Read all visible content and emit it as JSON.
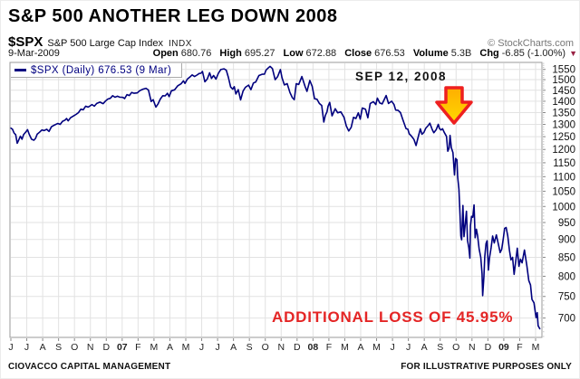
{
  "header": {
    "title": "S&P 500 ANOTHER LEG DOWN 2008",
    "symbol": "$SPX",
    "symbol_desc": "S&P 500 Large Cap Index",
    "exchange": "INDX",
    "copyright": "© StockCharts.com",
    "date": "9-Mar-2009",
    "quote": [
      {
        "label": "Open",
        "value": "680.76"
      },
      {
        "label": "High",
        "value": "695.27"
      },
      {
        "label": "Low",
        "value": "672.88"
      },
      {
        "label": "Close",
        "value": "676.53"
      },
      {
        "label": "Volume",
        "value": "5.3B"
      },
      {
        "label": "Chg",
        "value": "-6.85 (-1.00%)"
      }
    ],
    "chg_down_glyph": "▼"
  },
  "legend": "$SPX (Daily) 676.53 (9 Mar)",
  "annotations": {
    "event_label": "SEP 12, 2008",
    "loss_label": "ADDITIONAL LOSS OF 45.95%"
  },
  "footer": {
    "left": "CIOVACCO CAPITAL MANAGEMENT",
    "right": "FOR ILLUSTRATIVE PURPOSES ONLY"
  },
  "colors": {
    "line": "#00007E",
    "grid": "#E2E2E2",
    "frame": "#9A9A9A",
    "tick": "#888888",
    "minor_tick": "#C8C8C8",
    "axis_text": "#111111",
    "arrow_fill_top": "#FFAE00",
    "arrow_fill_bottom": "#FFD800",
    "arrow_stroke": "#EE2020",
    "loss_text": "#E42525",
    "chg_triangle": "#992244"
  },
  "chart_data": {
    "type": "line",
    "scale": "log",
    "title": "S&P 500 ANOTHER LEG DOWN 2008",
    "xlabel": "",
    "ylabel": "",
    "x_unit": "months since Jun-2006 (fractional); axis ticks are month starts",
    "x_months": [
      "J",
      "J",
      "A",
      "S",
      "O",
      "N",
      "D",
      "07",
      "F",
      "M",
      "A",
      "M",
      "J",
      "J",
      "A",
      "S",
      "O",
      "N",
      "D",
      "08",
      "F",
      "M",
      "A",
      "M",
      "J",
      "J",
      "A",
      "S",
      "O",
      "N",
      "D",
      "09",
      "F",
      "M"
    ],
    "y_ticks": [
      1550,
      1500,
      1450,
      1400,
      1350,
      1300,
      1250,
      1200,
      1150,
      1100,
      1050,
      1000,
      950,
      900,
      850,
      800,
      750,
      700
    ],
    "ylim": [
      658,
      1585
    ],
    "grid": true,
    "legend_position": "top-left",
    "series": [
      {
        "name": "$SPX (Daily)",
        "last_value": 676.53,
        "last_date": "9-Mar-2009",
        "points": [
          [
            0,
            1285
          ],
          [
            0.1,
            1280
          ],
          [
            0.2,
            1265
          ],
          [
            0.3,
            1258
          ],
          [
            0.4,
            1224
          ],
          [
            0.5,
            1238
          ],
          [
            0.6,
            1252
          ],
          [
            0.7,
            1240
          ],
          [
            0.8,
            1258
          ],
          [
            0.95,
            1270
          ],
          [
            1.05,
            1278
          ],
          [
            1.15,
            1260
          ],
          [
            1.3,
            1240
          ],
          [
            1.45,
            1236
          ],
          [
            1.55,
            1243
          ],
          [
            1.65,
            1260
          ],
          [
            1.8,
            1268
          ],
          [
            1.95,
            1277
          ],
          [
            2.1,
            1275
          ],
          [
            2.25,
            1280
          ],
          [
            2.4,
            1271
          ],
          [
            2.55,
            1290
          ],
          [
            2.7,
            1296
          ],
          [
            2.85,
            1301
          ],
          [
            2.95,
            1304
          ],
          [
            3.1,
            1300
          ],
          [
            3.25,
            1313
          ],
          [
            3.4,
            1318
          ],
          [
            3.5,
            1325
          ],
          [
            3.6,
            1315
          ],
          [
            3.75,
            1328
          ],
          [
            3.95,
            1336
          ],
          [
            4.1,
            1342
          ],
          [
            4.25,
            1350
          ],
          [
            4.4,
            1365
          ],
          [
            4.55,
            1362
          ],
          [
            4.7,
            1378
          ],
          [
            4.85,
            1374
          ],
          [
            4.95,
            1378
          ],
          [
            5.1,
            1385
          ],
          [
            5.25,
            1378
          ],
          [
            5.4,
            1390
          ],
          [
            5.6,
            1396
          ],
          [
            5.8,
            1389
          ],
          [
            5.95,
            1401
          ],
          [
            6.1,
            1410
          ],
          [
            6.25,
            1413
          ],
          [
            6.4,
            1425
          ],
          [
            6.55,
            1418
          ],
          [
            6.7,
            1423
          ],
          [
            6.85,
            1418
          ],
          [
            6.95,
            1418
          ],
          [
            7.05,
            1417
          ],
          [
            7.15,
            1412
          ],
          [
            7.3,
            1430
          ],
          [
            7.45,
            1426
          ],
          [
            7.6,
            1440
          ],
          [
            7.75,
            1436
          ],
          [
            7.95,
            1438
          ],
          [
            8.1,
            1448
          ],
          [
            8.3,
            1455
          ],
          [
            8.5,
            1459
          ],
          [
            8.65,
            1451
          ],
          [
            8.82,
            1399
          ],
          [
            8.95,
            1407
          ],
          [
            9.05,
            1387
          ],
          [
            9.12,
            1374
          ],
          [
            9.25,
            1387
          ],
          [
            9.4,
            1410
          ],
          [
            9.55,
            1425
          ],
          [
            9.7,
            1424
          ],
          [
            9.85,
            1436
          ],
          [
            9.95,
            1421
          ],
          [
            10.1,
            1448
          ],
          [
            10.3,
            1452
          ],
          [
            10.5,
            1471
          ],
          [
            10.7,
            1480
          ],
          [
            10.85,
            1494
          ],
          [
            10.95,
            1482
          ],
          [
            11.1,
            1503
          ],
          [
            11.25,
            1512
          ],
          [
            11.4,
            1523
          ],
          [
            11.55,
            1515
          ],
          [
            11.7,
            1522
          ],
          [
            11.85,
            1530
          ],
          [
            11.95,
            1531
          ],
          [
            12.05,
            1540
          ],
          [
            12.2,
            1490
          ],
          [
            12.35,
            1503
          ],
          [
            12.5,
            1533
          ],
          [
            12.62,
            1506
          ],
          [
            12.75,
            1520
          ],
          [
            12.9,
            1503
          ],
          [
            13.05,
            1531
          ],
          [
            13.2,
            1549
          ],
          [
            13.4,
            1553
          ],
          [
            13.55,
            1546
          ],
          [
            13.68,
            1511
          ],
          [
            13.82,
            1465
          ],
          [
            13.95,
            1455
          ],
          [
            14.05,
            1467
          ],
          [
            14.15,
            1433
          ],
          [
            14.3,
            1453
          ],
          [
            14.45,
            1406
          ],
          [
            14.6,
            1446
          ],
          [
            14.75,
            1464
          ],
          [
            14.95,
            1474
          ],
          [
            15.1,
            1453
          ],
          [
            15.25,
            1484
          ],
          [
            15.4,
            1489
          ],
          [
            15.6,
            1520
          ],
          [
            15.8,
            1526
          ],
          [
            15.95,
            1527
          ],
          [
            16.05,
            1547
          ],
          [
            16.18,
            1557
          ],
          [
            16.3,
            1565
          ],
          [
            16.45,
            1554
          ],
          [
            16.62,
            1500
          ],
          [
            16.78,
            1515
          ],
          [
            16.95,
            1549
          ],
          [
            17.05,
            1509
          ],
          [
            17.2,
            1475
          ],
          [
            17.38,
            1481
          ],
          [
            17.55,
            1440
          ],
          [
            17.7,
            1416
          ],
          [
            17.82,
            1407
          ],
          [
            17.95,
            1481
          ],
          [
            18.1,
            1477
          ],
          [
            18.3,
            1515
          ],
          [
            18.5,
            1468
          ],
          [
            18.62,
            1445
          ],
          [
            18.8,
            1496
          ],
          [
            18.95,
            1468
          ],
          [
            19.1,
            1411
          ],
          [
            19.25,
            1409
          ],
          [
            19.4,
            1390
          ],
          [
            19.55,
            1381
          ],
          [
            19.68,
            1310
          ],
          [
            19.78,
            1338
          ],
          [
            19.88,
            1353
          ],
          [
            19.95,
            1378
          ],
          [
            20.05,
            1395
          ],
          [
            20.2,
            1336
          ],
          [
            20.4,
            1367
          ],
          [
            20.55,
            1349
          ],
          [
            20.75,
            1353
          ],
          [
            20.95,
            1330
          ],
          [
            21.1,
            1293
          ],
          [
            21.25,
            1273
          ],
          [
            21.4,
            1288
          ],
          [
            21.55,
            1330
          ],
          [
            21.7,
            1325
          ],
          [
            21.85,
            1349
          ],
          [
            21.97,
            1322
          ],
          [
            22.1,
            1370
          ],
          [
            22.3,
            1365
          ],
          [
            22.45,
            1328
          ],
          [
            22.6,
            1390
          ],
          [
            22.8,
            1398
          ],
          [
            22.95,
            1385
          ],
          [
            23.05,
            1414
          ],
          [
            23.2,
            1392
          ],
          [
            23.35,
            1388
          ],
          [
            23.6,
            1426
          ],
          [
            23.75,
            1390
          ],
          [
            23.95,
            1400
          ],
          [
            24.1,
            1385
          ],
          [
            24.2,
            1361
          ],
          [
            24.35,
            1360
          ],
          [
            24.5,
            1350
          ],
          [
            24.65,
            1320
          ],
          [
            24.85,
            1283
          ],
          [
            24.97,
            1280
          ],
          [
            25.05,
            1262
          ],
          [
            25.2,
            1252
          ],
          [
            25.35,
            1239
          ],
          [
            25.48,
            1215
          ],
          [
            25.6,
            1245
          ],
          [
            25.75,
            1282
          ],
          [
            25.85,
            1260
          ],
          [
            25.97,
            1267
          ],
          [
            26.1,
            1285
          ],
          [
            26.25,
            1296
          ],
          [
            26.35,
            1305
          ],
          [
            26.5,
            1278
          ],
          [
            26.6,
            1266
          ],
          [
            26.75,
            1278
          ],
          [
            26.88,
            1300
          ],
          [
            26.95,
            1283
          ],
          [
            27.05,
            1277
          ],
          [
            27.15,
            1282
          ],
          [
            27.25,
            1268
          ],
          [
            27.4,
            1251
          ],
          [
            27.48,
            1193
          ],
          [
            27.56,
            1206
          ],
          [
            27.62,
            1255
          ],
          [
            27.7,
            1207
          ],
          [
            27.8,
            1188
          ],
          [
            27.9,
            1106
          ],
          [
            27.97,
            1166
          ],
          [
            28.05,
            1161
          ],
          [
            28.1,
            1099
          ],
          [
            28.18,
            1057
          ],
          [
            28.23,
            996
          ],
          [
            28.3,
            910
          ],
          [
            28.35,
            899
          ],
          [
            28.43,
            1003
          ],
          [
            28.5,
            908
          ],
          [
            28.58,
            946
          ],
          [
            28.65,
            985
          ],
          [
            28.72,
            897
          ],
          [
            28.8,
            877
          ],
          [
            28.87,
            848
          ],
          [
            28.9,
            940
          ],
          [
            28.97,
            969
          ],
          [
            29.05,
            966
          ],
          [
            29.13,
            1005
          ],
          [
            29.2,
            905
          ],
          [
            29.28,
            930
          ],
          [
            29.35,
            911
          ],
          [
            29.45,
            873
          ],
          [
            29.55,
            850
          ],
          [
            29.63,
            807
          ],
          [
            29.67,
            752
          ],
          [
            29.75,
            800
          ],
          [
            29.8,
            851
          ],
          [
            29.88,
            888
          ],
          [
            29.95,
            896
          ],
          [
            30.03,
            816
          ],
          [
            30.1,
            848
          ],
          [
            30.2,
            876
          ],
          [
            30.3,
            910
          ],
          [
            30.4,
            890
          ],
          [
            30.53,
            913
          ],
          [
            30.65,
            888
          ],
          [
            30.77,
            863
          ],
          [
            30.87,
            872
          ],
          [
            30.97,
            903
          ],
          [
            31.05,
            932
          ],
          [
            31.15,
            935
          ],
          [
            31.25,
            910
          ],
          [
            31.35,
            870
          ],
          [
            31.45,
            843
          ],
          [
            31.55,
            850
          ],
          [
            31.65,
            805
          ],
          [
            31.75,
            840
          ],
          [
            31.85,
            875
          ],
          [
            31.95,
            826
          ],
          [
            32.05,
            845
          ],
          [
            32.15,
            835
          ],
          [
            32.3,
            870
          ],
          [
            32.45,
            827
          ],
          [
            32.57,
            789
          ],
          [
            32.68,
            778
          ],
          [
            32.77,
            743
          ],
          [
            32.9,
            735
          ],
          [
            33.03,
            701
          ],
          [
            33.1,
            712
          ],
          [
            33.16,
            683
          ],
          [
            33.26,
            676.5
          ]
        ]
      }
    ],
    "annotations": [
      {
        "text": "SEP 12, 2008",
        "points_to": [
          27.4,
          1251
        ]
      },
      {
        "text": "ADDITIONAL LOSS OF 45.95%"
      }
    ]
  }
}
